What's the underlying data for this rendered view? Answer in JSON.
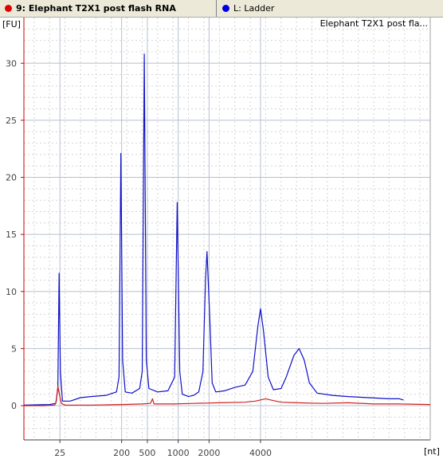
{
  "tabs": {
    "sample": {
      "label": "9: Elephant T2X1 post flash RNA",
      "color": "#e00000"
    },
    "ladder": {
      "label": "L: Ladder",
      "color": "#0000e0"
    }
  },
  "chart_data": {
    "type": "line",
    "title": "",
    "legend_text": "Elephant T2X1 post fla...",
    "legend_placement": "top-right",
    "ylabel": "[FU]",
    "xlabel": "[nt]",
    "ylim": [
      -3,
      34
    ],
    "yticks": [
      0,
      5,
      10,
      15,
      20,
      25,
      30
    ],
    "xticks": [
      {
        "label": "25",
        "t": 24
      },
      {
        "label": "200",
        "t": 36
      },
      {
        "label": "500",
        "t": 41
      },
      {
        "label": "1000",
        "t": 47
      },
      {
        "label": "2000",
        "t": 53
      },
      {
        "label": "4000",
        "t": 63
      }
    ],
    "xrange_t": [
      17,
      96
    ],
    "grid": true,
    "series": [
      {
        "name": "L: Ladder",
        "color": "#1010c8",
        "points": [
          [
            17,
            0.05
          ],
          [
            20,
            0.08
          ],
          [
            22,
            0.1
          ],
          [
            23.2,
            0.2
          ],
          [
            23.6,
            1.5
          ],
          [
            23.85,
            11.6
          ],
          [
            24.1,
            3.0
          ],
          [
            24.5,
            0.4
          ],
          [
            26,
            0.4
          ],
          [
            28,
            0.7
          ],
          [
            30,
            0.8
          ],
          [
            33,
            0.9
          ],
          [
            35,
            1.2
          ],
          [
            35.5,
            2.5
          ],
          [
            35.85,
            22.1
          ],
          [
            36.2,
            4.0
          ],
          [
            36.7,
            1.2
          ],
          [
            38,
            1.1
          ],
          [
            39.5,
            1.5
          ],
          [
            40,
            3.0
          ],
          [
            40.4,
            30.8
          ],
          [
            40.8,
            4.0
          ],
          [
            41.3,
            1.5
          ],
          [
            43,
            1.2
          ],
          [
            45,
            1.3
          ],
          [
            46.3,
            2.5
          ],
          [
            46.8,
            17.8
          ],
          [
            47.3,
            3.0
          ],
          [
            47.8,
            1.0
          ],
          [
            49,
            0.8
          ],
          [
            50,
            0.9
          ],
          [
            51,
            1.2
          ],
          [
            51.8,
            3.0
          ],
          [
            52.3,
            11.0
          ],
          [
            52.6,
            13.5
          ],
          [
            53.1,
            8.0
          ],
          [
            53.6,
            2.0
          ],
          [
            54.3,
            1.2
          ],
          [
            56,
            1.3
          ],
          [
            58,
            1.6
          ],
          [
            60,
            1.8
          ],
          [
            61.5,
            3.0
          ],
          [
            62.5,
            7.0
          ],
          [
            63,
            8.5
          ],
          [
            63.6,
            6.5
          ],
          [
            64.5,
            2.5
          ],
          [
            65.5,
            1.4
          ],
          [
            67,
            1.5
          ],
          [
            68,
            2.5
          ],
          [
            69.5,
            4.4
          ],
          [
            70.5,
            5.0
          ],
          [
            71.5,
            4.0
          ],
          [
            72.5,
            2.0
          ],
          [
            74,
            1.1
          ],
          [
            77,
            0.9
          ],
          [
            80,
            0.8
          ],
          [
            84,
            0.7
          ],
          [
            88,
            0.6
          ],
          [
            90,
            0.6
          ],
          [
            90.8,
            0.5
          ]
        ]
      },
      {
        "name": "9: Elephant T2X1 post flash RNA",
        "color": "#d02020",
        "points": [
          [
            17,
            0.0
          ],
          [
            21,
            0.0
          ],
          [
            23.0,
            0.05
          ],
          [
            23.3,
            0.4
          ],
          [
            23.6,
            1.7
          ],
          [
            23.9,
            1.0
          ],
          [
            24.3,
            0.2
          ],
          [
            25,
            0.05
          ],
          [
            30,
            0.05
          ],
          [
            36,
            0.1
          ],
          [
            40,
            0.15
          ],
          [
            41.6,
            0.2
          ],
          [
            42.0,
            0.6
          ],
          [
            42.3,
            0.15
          ],
          [
            46,
            0.15
          ],
          [
            50,
            0.2
          ],
          [
            55,
            0.25
          ],
          [
            60,
            0.3
          ],
          [
            62,
            0.4
          ],
          [
            64,
            0.6
          ],
          [
            65,
            0.5
          ],
          [
            67,
            0.3
          ],
          [
            70,
            0.25
          ],
          [
            75,
            0.2
          ],
          [
            80,
            0.25
          ],
          [
            85,
            0.15
          ],
          [
            90,
            0.15
          ],
          [
            96,
            0.1
          ]
        ]
      }
    ]
  }
}
